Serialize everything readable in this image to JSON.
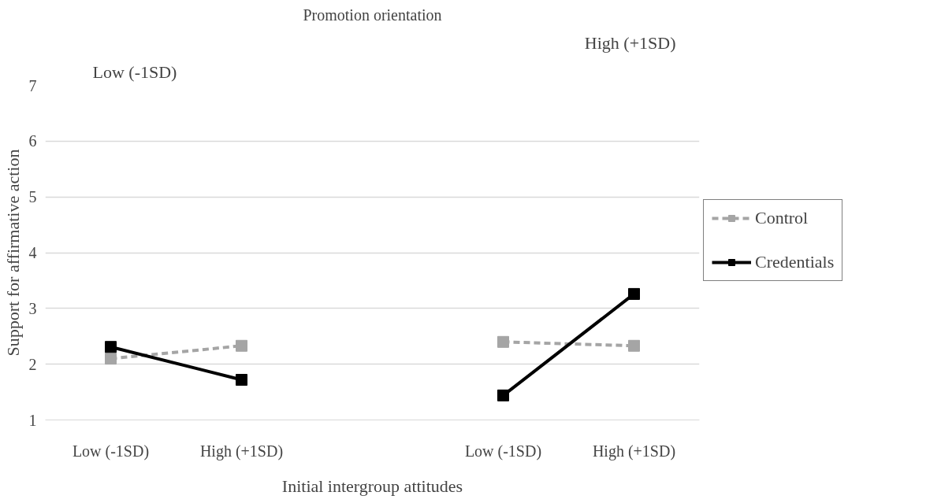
{
  "chart_data": {
    "type": "line",
    "title": "Promotion orientation",
    "xlabel": "Initial intergroup attitudes",
    "ylabel": "Support for affirmative action",
    "annotations": [
      "Low (-1SD)",
      "High (+1SD)"
    ],
    "categories": [
      "Low (-1SD)",
      "High (+1SD)",
      null,
      "Low (-1SD)",
      "High (+1SD)"
    ],
    "series": [
      {
        "name": "Control",
        "color": "#a5a5a5",
        "line_style": "dashed",
        "values": [
          2.1,
          2.33,
          null,
          2.4,
          2.33
        ]
      },
      {
        "name": "Credentials",
        "color": "#000000",
        "line_style": "solid",
        "values": [
          2.31,
          1.72,
          null,
          1.44,
          3.26
        ]
      }
    ],
    "ylim": [
      1,
      7
    ],
    "yticks": [
      1,
      2,
      3,
      4,
      5,
      6,
      7
    ],
    "grid": "y",
    "legend": "right",
    "marker": "square"
  }
}
